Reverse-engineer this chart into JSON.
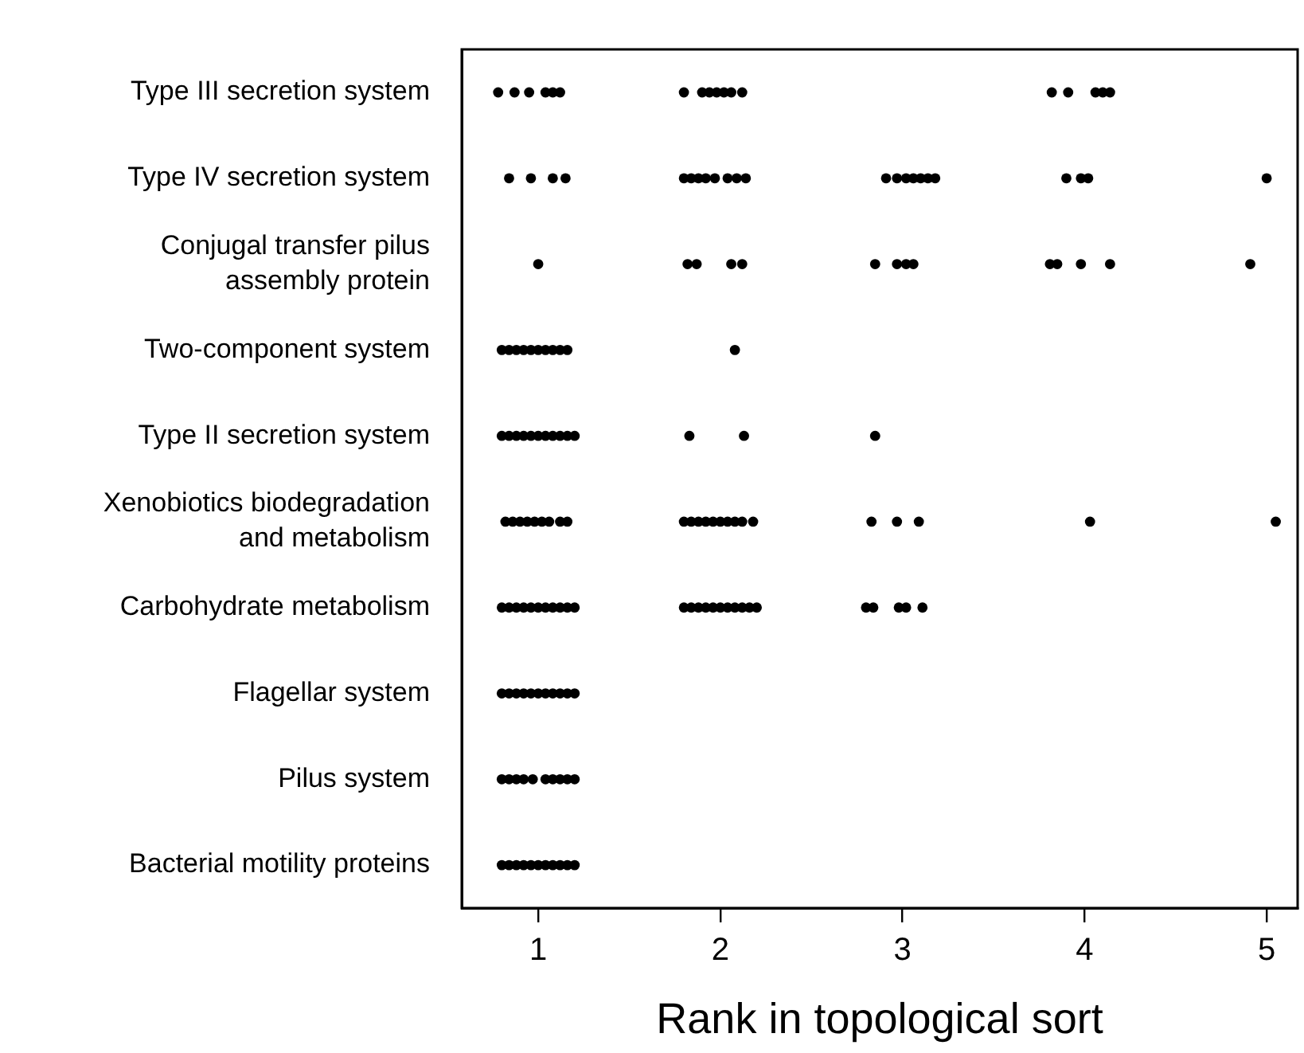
{
  "chart_data": {
    "type": "scatter",
    "orientation": "horizontal",
    "xlabel": "Rank in topological sort",
    "marker": "circle",
    "grid": false,
    "legend": false,
    "xlim": [
      0.58,
      5.17
    ],
    "xticks": [
      1,
      2,
      3,
      4,
      5
    ],
    "categories": [
      "Type III secretion system",
      "Type IV secretion system",
      "Conjugal transfer pilus assembly protein",
      "Two-component system",
      "Type II secretion system",
      "Xenobiotics biodegradation and metabolism",
      "Carbohydrate metabolism",
      "Flagellar system",
      "Pilus system",
      "Bacterial motility proteins"
    ],
    "series": [
      {
        "color": "#000000",
        "values": [
          0.78,
          0.84,
          1.0,
          0.8,
          0.8,
          0.82,
          0.8,
          0.8,
          0.8,
          0.8
        ]
      },
      {
        "color": "#000000",
        "values": [
          0.87,
          0.96,
          1.82,
          0.84,
          0.84,
          0.86,
          0.84,
          0.84,
          0.84,
          0.84
        ]
      },
      {
        "color": "#000000",
        "values": [
          0.95,
          1.08,
          1.87,
          0.88,
          0.88,
          0.9,
          0.88,
          0.88,
          0.88,
          0.88
        ]
      },
      {
        "color": "#000000",
        "values": [
          1.04,
          1.15,
          2.06,
          0.92,
          0.92,
          0.94,
          0.92,
          0.92,
          0.92,
          0.92
        ]
      },
      {
        "color": "#000000",
        "values": [
          1.08,
          1.8,
          2.12,
          0.96,
          0.96,
          0.98,
          0.96,
          0.96,
          0.97,
          0.96
        ]
      },
      {
        "color": "#000000",
        "values": [
          1.12,
          1.84,
          2.85,
          1.0,
          1.0,
          1.02,
          1.0,
          1.0,
          1.04,
          1.0
        ]
      },
      {
        "color": "#000000",
        "values": [
          1.8,
          1.88,
          2.97,
          1.04,
          1.04,
          1.06,
          1.04,
          1.04,
          1.08,
          1.04
        ]
      },
      {
        "color": "#000000",
        "values": [
          1.9,
          1.92,
          3.02,
          1.08,
          1.08,
          1.12,
          1.08,
          1.08,
          1.12,
          1.08
        ]
      },
      {
        "color": "#000000",
        "values": [
          1.94,
          1.97,
          3.06,
          1.12,
          1.12,
          1.16,
          1.12,
          1.12,
          1.16,
          1.12
        ]
      },
      {
        "color": "#000000",
        "values": [
          1.98,
          2.04,
          3.81,
          1.16,
          1.16,
          1.8,
          1.16,
          1.16,
          1.2,
          1.16
        ]
      },
      {
        "color": "#000000",
        "values": [
          2.02,
          2.09,
          3.85,
          2.08,
          1.2,
          1.84,
          1.2,
          1.2,
          null,
          1.2
        ]
      },
      {
        "color": "#000000",
        "values": [
          2.06,
          2.14,
          3.98,
          null,
          1.83,
          1.88,
          1.8,
          null,
          null,
          null
        ]
      },
      {
        "color": "#000000",
        "values": [
          2.12,
          2.91,
          4.14,
          null,
          2.13,
          1.92,
          1.84,
          null,
          null,
          null
        ]
      },
      {
        "color": "#000000",
        "values": [
          3.82,
          2.97,
          4.91,
          null,
          2.85,
          1.96,
          1.88,
          null,
          null,
          null
        ]
      },
      {
        "color": "#000000",
        "values": [
          3.91,
          3.02,
          null,
          null,
          null,
          2.0,
          1.92,
          null,
          null,
          null
        ]
      },
      {
        "color": "#000000",
        "values": [
          4.06,
          3.06,
          null,
          null,
          null,
          2.04,
          1.96,
          null,
          null,
          null
        ]
      },
      {
        "color": "#000000",
        "values": [
          4.1,
          3.1,
          null,
          null,
          null,
          2.08,
          2.0,
          null,
          null,
          null
        ]
      },
      {
        "color": "#000000",
        "values": [
          4.14,
          3.14,
          null,
          null,
          null,
          2.12,
          2.04,
          null,
          null,
          null
        ]
      },
      {
        "color": "#000000",
        "values": [
          null,
          3.18,
          null,
          null,
          null,
          2.18,
          2.08,
          null,
          null,
          null
        ]
      },
      {
        "color": "#000000",
        "values": [
          null,
          3.9,
          null,
          null,
          null,
          2.83,
          2.12,
          null,
          null,
          null
        ]
      },
      {
        "color": "#000000",
        "values": [
          null,
          3.98,
          null,
          null,
          null,
          2.97,
          2.16,
          null,
          null,
          null
        ]
      },
      {
        "color": "#000000",
        "values": [
          null,
          4.02,
          null,
          null,
          null,
          3.09,
          2.2,
          null,
          null,
          null
        ]
      },
      {
        "color": "#000000",
        "values": [
          null,
          5.0,
          null,
          null,
          null,
          4.03,
          2.8,
          null,
          null,
          null
        ]
      },
      {
        "color": "#000000",
        "values": [
          null,
          null,
          null,
          null,
          null,
          5.05,
          2.84,
          null,
          null,
          null
        ]
      },
      {
        "color": "#000000",
        "values": [
          null,
          null,
          null,
          null,
          null,
          null,
          2.98,
          null,
          null,
          null
        ]
      },
      {
        "color": "#000000",
        "values": [
          null,
          null,
          null,
          null,
          null,
          null,
          3.02,
          null,
          null,
          null
        ]
      },
      {
        "color": "#000000",
        "values": [
          null,
          null,
          null,
          null,
          null,
          null,
          3.11,
          null,
          null,
          null
        ]
      }
    ]
  }
}
